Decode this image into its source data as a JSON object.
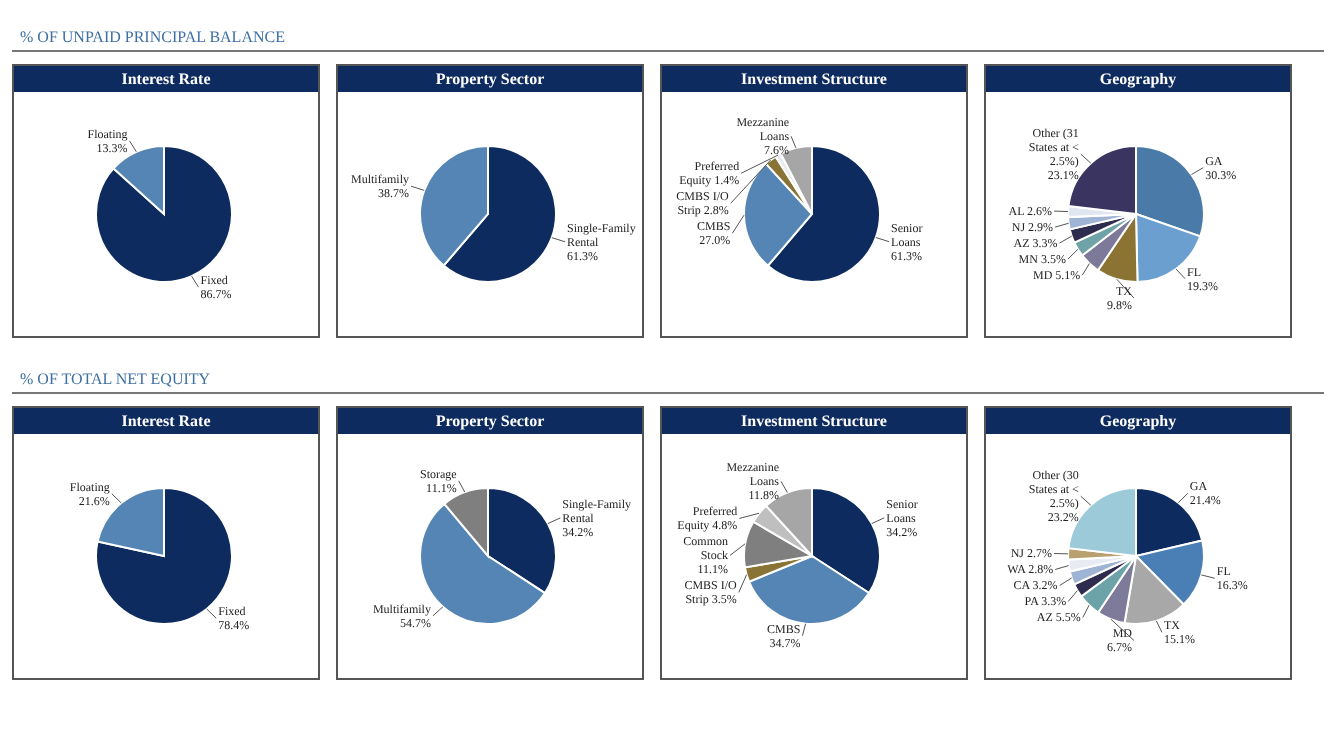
{
  "chart_data": [
    {
      "type": "pie",
      "subtitle": "% OF UNPAID PRINCIPAL BALANCE",
      "title": "Interest Rate",
      "categories": [
        "Fixed",
        "Floating"
      ],
      "values": [
        86.7,
        13.3
      ],
      "value_labels": [
        "86.7%",
        "13.3%"
      ],
      "colors": [
        "#0d2b5e",
        "#5485b5"
      ]
    },
    {
      "type": "pie",
      "title": "Property Sector",
      "categories": [
        "Single-Family Rental",
        "Multifamily"
      ],
      "values": [
        61.3,
        38.7
      ],
      "value_labels": [
        "61.3%",
        "38.7%"
      ],
      "colors": [
        "#0d2b5e",
        "#5485b5"
      ]
    },
    {
      "type": "pie",
      "title": "Investment Structure",
      "categories": [
        "Senior Loans",
        "CMBS",
        "CMBS I/O Strip",
        "Preferred Equity",
        "Mezzanine Loans"
      ],
      "values": [
        61.3,
        27.0,
        2.8,
        1.4,
        7.6
      ],
      "value_labels": [
        "61.3%",
        "27.0%",
        "2.8%",
        "1.4%",
        "7.6%"
      ],
      "colors": [
        "#0d2b5e",
        "#5485b5",
        "#8a7435",
        "#e8ecf2",
        "#a6a6a6"
      ]
    },
    {
      "type": "pie",
      "title": "Geography",
      "categories": [
        "GA",
        "FL",
        "TX",
        "MD",
        "MN",
        "AZ",
        "NJ",
        "AL",
        "Other (31 States at < 2.5%)"
      ],
      "values": [
        30.3,
        19.3,
        9.8,
        5.1,
        3.5,
        3.3,
        2.9,
        2.6,
        23.1
      ],
      "value_labels": [
        "30.3%",
        "19.3%",
        "9.8%",
        "5.1%",
        "3.5%",
        "3.3%",
        "2.9%",
        "2.6%",
        "23.1%"
      ],
      "colors": [
        "#4a7aa8",
        "#6a9fd0",
        "#8b7433",
        "#7d7a99",
        "#6fa3a8",
        "#2d2b4e",
        "#9fb4d4",
        "#e0e6f0",
        "#3a3560"
      ]
    },
    {
      "type": "pie",
      "subtitle": "% OF TOTAL NET EQUITY",
      "title": "Interest Rate",
      "categories": [
        "Fixed",
        "Floating"
      ],
      "values": [
        78.4,
        21.6
      ],
      "value_labels": [
        "78.4%",
        "21.6%"
      ],
      "colors": [
        "#0d2b5e",
        "#5485b5"
      ]
    },
    {
      "type": "pie",
      "title": "Property Sector",
      "categories": [
        "Single-Family Rental",
        "Multifamily",
        "Storage"
      ],
      "values": [
        34.2,
        54.7,
        11.1
      ],
      "value_labels": [
        "34.2%",
        "54.7%",
        "11.1%"
      ],
      "colors": [
        "#0d2b5e",
        "#5485b5",
        "#7f7f7f"
      ]
    },
    {
      "type": "pie",
      "title": "Investment Structure",
      "categories": [
        "Senior Loans",
        "CMBS",
        "CMBS I/O Strip",
        "Common Stock",
        "Preferred Equity",
        "Mezzanine Loans"
      ],
      "values": [
        34.2,
        34.7,
        3.5,
        11.1,
        4.8,
        11.8
      ],
      "value_labels": [
        "34.2%",
        "34.7%",
        "3.5%",
        "11.1%",
        "4.8%",
        "11.8%"
      ],
      "colors": [
        "#0d2b5e",
        "#5485b5",
        "#8a7435",
        "#7f7f7f",
        "#bfbfbf",
        "#a6a6a6"
      ]
    },
    {
      "type": "pie",
      "title": "Geography",
      "categories": [
        "GA",
        "FL",
        "TX",
        "MD",
        "AZ",
        "PA",
        "CA",
        "WA",
        "NJ",
        "Other (30 States at < 2.5%)"
      ],
      "values": [
        21.4,
        16.3,
        15.1,
        6.7,
        5.5,
        3.3,
        3.2,
        2.8,
        2.7,
        23.2
      ],
      "value_labels": [
        "21.4%",
        "16.3%",
        "15.1%",
        "6.7%",
        "5.5%",
        "3.3%",
        "3.2%",
        "2.8%",
        "2.7%",
        "23.2%"
      ],
      "colors": [
        "#0d2b5e",
        "#4a7fb5",
        "#a8a8a8",
        "#7e7b9a",
        "#6ba3a8",
        "#2d2b4e",
        "#9fb4d4",
        "#e8ecf2",
        "#b8a070",
        "#9ccad8"
      ]
    }
  ]
}
